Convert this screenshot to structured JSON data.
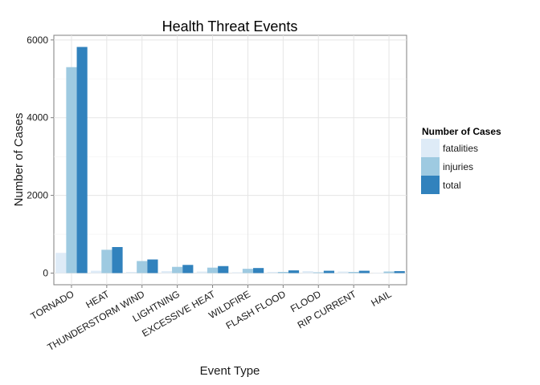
{
  "chart_data": {
    "type": "bar",
    "title": "Health Threat Events",
    "xlabel": "Event Type",
    "ylabel": "Number of Cases",
    "categories": [
      "TORNADO",
      "HEAT",
      "THUNDERSTORM WIND",
      "LIGHTNING",
      "EXCESSIVE HEAT",
      "WILDFIRE",
      "FLASH FLOOD",
      "FLOOD",
      "RIP CURRENT",
      "HAIL"
    ],
    "series": [
      {
        "name": "fatalities",
        "color": "#deebf7",
        "values": [
          520,
          60,
          30,
          50,
          40,
          20,
          30,
          50,
          40,
          10
        ]
      },
      {
        "name": "injuries",
        "color": "#9ecae1",
        "values": [
          5300,
          600,
          310,
          160,
          140,
          110,
          30,
          20,
          30,
          40
        ]
      },
      {
        "name": "total",
        "color": "#3182bd",
        "values": [
          5820,
          670,
          350,
          210,
          180,
          130,
          70,
          60,
          60,
          50
        ]
      }
    ],
    "ylim": [
      -300,
      6120
    ],
    "yticks": [
      0,
      2000,
      4000,
      6000
    ],
    "ytick_labels": [
      "0",
      "2000",
      "4000",
      "6000"
    ],
    "grid": true,
    "legend": {
      "title": "Number of Cases",
      "position": "right"
    }
  }
}
